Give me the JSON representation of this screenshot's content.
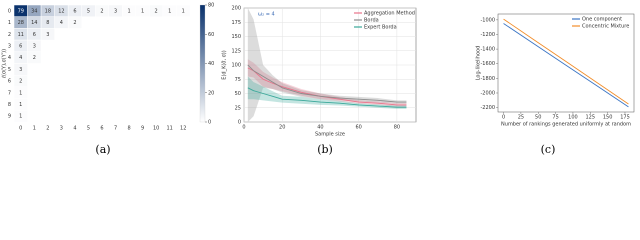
{
  "chart_data": [
    {
      "type": "heatmap",
      "caption": "(a)",
      "ylabel": "ℓ(σ(Y),σ(Y'))",
      "x": [
        0,
        1,
        2,
        3,
        4,
        5,
        6,
        7,
        8,
        9,
        10,
        11,
        12
      ],
      "y": [
        0,
        1,
        2,
        3,
        4,
        5,
        6,
        7,
        8,
        9
      ],
      "z": [
        [
          79,
          34,
          18,
          12,
          6,
          5,
          2,
          3,
          1,
          1,
          2,
          1,
          1
        ],
        [
          28,
          14,
          8,
          4,
          2
        ],
        [
          11,
          6,
          3
        ],
        [
          6,
          3
        ],
        [
          4,
          2
        ],
        [
          3
        ],
        [
          2
        ],
        [
          1
        ],
        [
          1
        ],
        [
          1
        ]
      ],
      "zlim": [
        0,
        80
      ],
      "zticks": [
        0,
        20,
        40,
        60,
        80
      ],
      "color": "#08306b"
    },
    {
      "type": "line",
      "caption": "(b)",
      "xlabel": "Sample size",
      "ylabel": "E(d_K(σ̂, σ))",
      "annotation": "ω₂ = 4",
      "x": [
        2,
        5,
        10,
        15,
        20,
        30,
        40,
        50,
        60,
        70,
        80,
        85
      ],
      "xlim": [
        0,
        90
      ],
      "xticks": [
        0,
        20,
        40,
        60,
        80
      ],
      "ylim": [
        0,
        200
      ],
      "yticks": [
        0,
        25,
        50,
        75,
        100,
        125,
        150,
        175,
        200
      ],
      "grid": true,
      "legend": "upper right",
      "series": [
        {
          "name": "Aggregation Method",
          "color": "#e8738a",
          "values": [
            95,
            90,
            75,
            68,
            62,
            52,
            45,
            40,
            35,
            33,
            30,
            30
          ],
          "lower": [
            80,
            78,
            62,
            58,
            54,
            46,
            40,
            36,
            32,
            30,
            27,
            27
          ],
          "upper": [
            110,
            104,
            88,
            78,
            70,
            58,
            50,
            44,
            38,
            36,
            33,
            33
          ]
        },
        {
          "name": "Borda",
          "color": "#8c8c8c",
          "values": [
            100,
            90,
            80,
            70,
            60,
            50,
            45,
            42,
            40,
            38,
            35,
            35
          ],
          "lower": [
            0,
            10,
            60,
            58,
            52,
            44,
            40,
            38,
            36,
            34,
            32,
            32
          ],
          "upper": [
            200,
            180,
            100,
            82,
            68,
            56,
            50,
            46,
            44,
            42,
            38,
            38
          ]
        },
        {
          "name": "Expert Borda",
          "color": "#3aa89a",
          "values": [
            60,
            55,
            50,
            45,
            40,
            38,
            35,
            33,
            30,
            28,
            26,
            26
          ],
          "lower": [
            40,
            40,
            38,
            36,
            34,
            32,
            30,
            29,
            27,
            25,
            23,
            23
          ],
          "upper": [
            80,
            70,
            62,
            54,
            46,
            44,
            40,
            37,
            33,
            31,
            29,
            29
          ]
        }
      ]
    },
    {
      "type": "line",
      "caption": "(c)",
      "xlabel": "Number of rankings generated uniformly at random",
      "ylabel": "Log-likelihood",
      "x": [
        0,
        45,
        90,
        135,
        180
      ],
      "xlim": [
        -8,
        188
      ],
      "xticks": [
        0,
        25,
        50,
        75,
        100,
        125,
        150,
        175
      ],
      "ylim": [
        -2260,
        -920
      ],
      "yticks": [
        -1000,
        -1200,
        -1400,
        -1600,
        -1800,
        -2000,
        -2200
      ],
      "grid": false,
      "legend": "upper right",
      "series": [
        {
          "name": "One component",
          "color": "#3b75c4",
          "values": [
            -1050,
            -1335,
            -1620,
            -1905,
            -2190
          ]
        },
        {
          "name": "Concentric Mixture",
          "color": "#f28e2b",
          "values": [
            -990,
            -1280,
            -1570,
            -1860,
            -2150
          ]
        }
      ]
    }
  ]
}
